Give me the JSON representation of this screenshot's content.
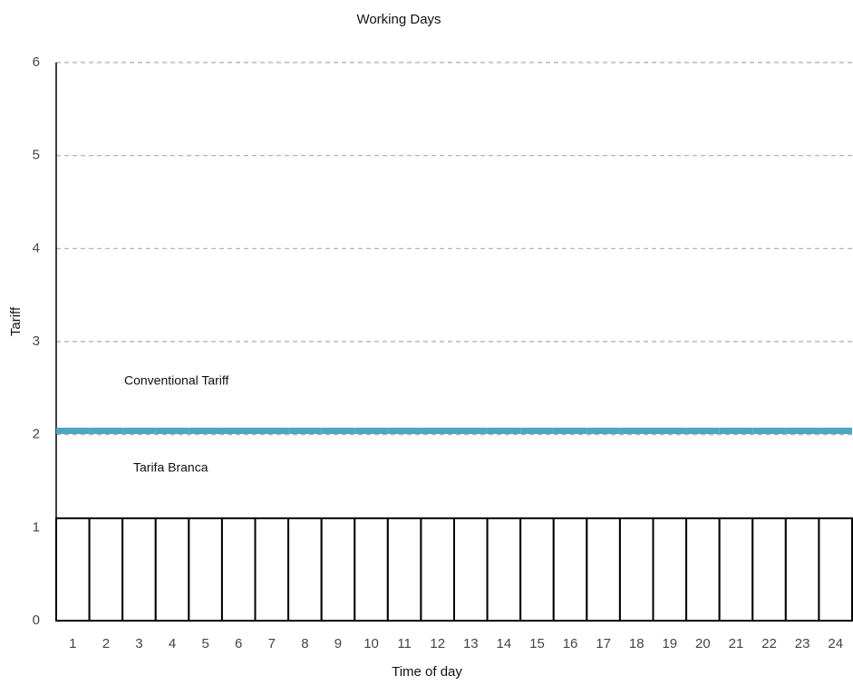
{
  "chart_data": {
    "type": "bar",
    "title": "Working Days",
    "xlabel": "Time of day",
    "ylabel": "Tariff",
    "categories": [
      "1",
      "2",
      "3",
      "4",
      "5",
      "6",
      "7",
      "8",
      "9",
      "10",
      "11",
      "12",
      "13",
      "14",
      "15",
      "16",
      "17",
      "18",
      "19",
      "20",
      "21",
      "22",
      "23",
      "24"
    ],
    "series": [
      {
        "name": "Tarifa Branca",
        "type": "bar",
        "color": "#ffffff",
        "values": [
          1.1,
          1.1,
          1.1,
          1.1,
          1.1,
          1.1,
          1.1,
          1.1,
          1.1,
          1.1,
          1.1,
          1.1,
          1.1,
          1.1,
          1.1,
          1.1,
          1.1,
          1.1,
          1.1,
          1.1,
          1.1,
          1.1,
          1.1,
          1.1
        ]
      },
      {
        "name": "Conventional Tariff",
        "type": "line",
        "color": "#4aa8c0",
        "values": [
          2.04,
          2.04,
          2.04,
          2.04,
          2.04,
          2.04,
          2.04,
          2.04,
          2.04,
          2.04,
          2.04,
          2.04,
          2.04,
          2.04,
          2.04,
          2.04,
          2.04,
          2.04,
          2.04,
          2.04,
          2.04,
          2.04,
          2.04,
          2.04
        ]
      }
    ],
    "ylim": [
      0,
      6
    ],
    "yticks": [
      0,
      1,
      2,
      3,
      4,
      5,
      6
    ],
    "grid": true
  }
}
